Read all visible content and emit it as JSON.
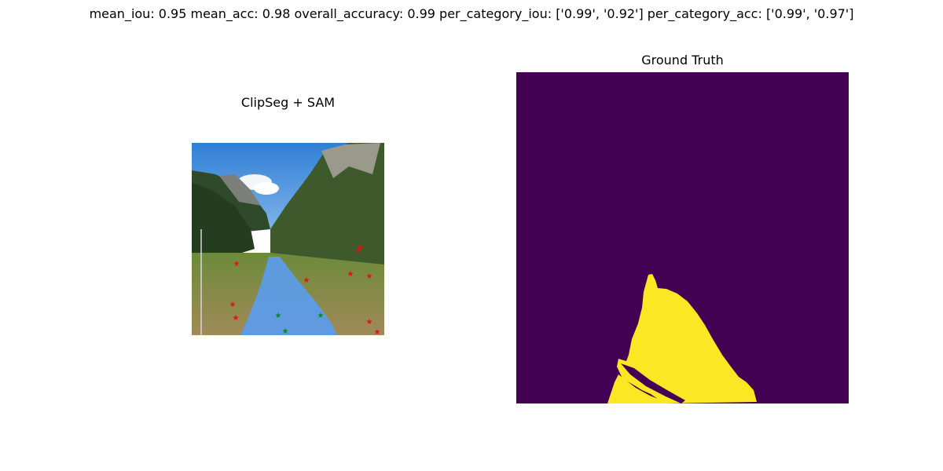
{
  "metrics_line": "mean_iou: 0.95  mean_acc: 0.98  overall_accuracy: 0.99  per_category_iou: ['0.99', '0.92']  per_category_acc: ['0.99', '0.97']",
  "left_panel": {
    "title": "ClipSeg + SAM",
    "mask_color": "#5b9bf0",
    "positive_point_color": "#118a11",
    "negative_point_color": "#e11414"
  },
  "right_panel": {
    "title": "Ground Truth",
    "background_color": "#440154",
    "foreground_color": "#fde725"
  }
}
